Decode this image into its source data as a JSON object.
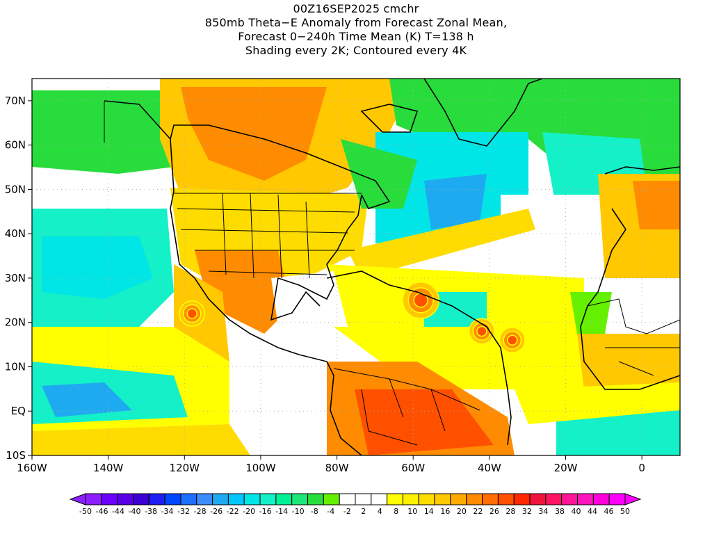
{
  "title": {
    "lines": [
      "00Z16SEP2025 cmchr",
      "850mb Theta−E Anomaly from Forecast Zonal Mean,",
      "Forecast 0−240h Time Mean (K) T=138 h",
      "Shading every 2K; Contoured every 4K"
    ]
  },
  "map": {
    "lon_range": [
      -160,
      10
    ],
    "lat_range": [
      -10,
      75
    ],
    "y_tick_labels": [
      "70N",
      "60N",
      "50N",
      "40N",
      "30N",
      "20N",
      "10N",
      "EQ",
      "10S"
    ],
    "y_tick_values": [
      70,
      60,
      50,
      40,
      30,
      20,
      10,
      0,
      -10
    ],
    "x_tick_labels": [
      "160W",
      "140W",
      "120W",
      "100W",
      "80W",
      "60W",
      "40W",
      "20W",
      "0"
    ],
    "x_tick_values": [
      -160,
      -140,
      -120,
      -100,
      -80,
      -60,
      -40,
      -20,
      0
    ]
  },
  "colorbar": {
    "labels": [
      "-50",
      "-46",
      "-44",
      "-40",
      "-38",
      "-34",
      "-32",
      "-28",
      "-26",
      "-22",
      "-20",
      "-16",
      "-14",
      "-10",
      "-8",
      "-4",
      "-2",
      "2",
      "4",
      "8",
      "10",
      "14",
      "16",
      "20",
      "22",
      "26",
      "28",
      "32",
      "34",
      "38",
      "40",
      "44",
      "46",
      "50"
    ],
    "colors": [
      "#8c1eff",
      "#6e00ff",
      "#5a00e6",
      "#3c00d2",
      "#1e1ef0",
      "#0046ff",
      "#1e6eff",
      "#3c8cff",
      "#1eaaf0",
      "#00c8ff",
      "#00e6e6",
      "#14f0c8",
      "#00f096",
      "#1ee678",
      "#28dc3c",
      "#64f000",
      "#ffffff",
      "#ffffff",
      "#ffffff",
      "#ffff00",
      "#fff000",
      "#ffdc00",
      "#ffc800",
      "#ffaa00",
      "#ff8c00",
      "#ff6e00",
      "#ff5000",
      "#ff2800",
      "#f0143c",
      "#ff1464",
      "#ff1496",
      "#ff14be",
      "#ff00dc",
      "#ff00ff"
    ]
  },
  "features": {
    "cyclones": [
      {
        "lon": -58,
        "lat": 25
      },
      {
        "lon": -42,
        "lat": 18
      },
      {
        "lon": -34,
        "lat": 16
      },
      {
        "lon": -118,
        "lat": 22
      }
    ]
  }
}
